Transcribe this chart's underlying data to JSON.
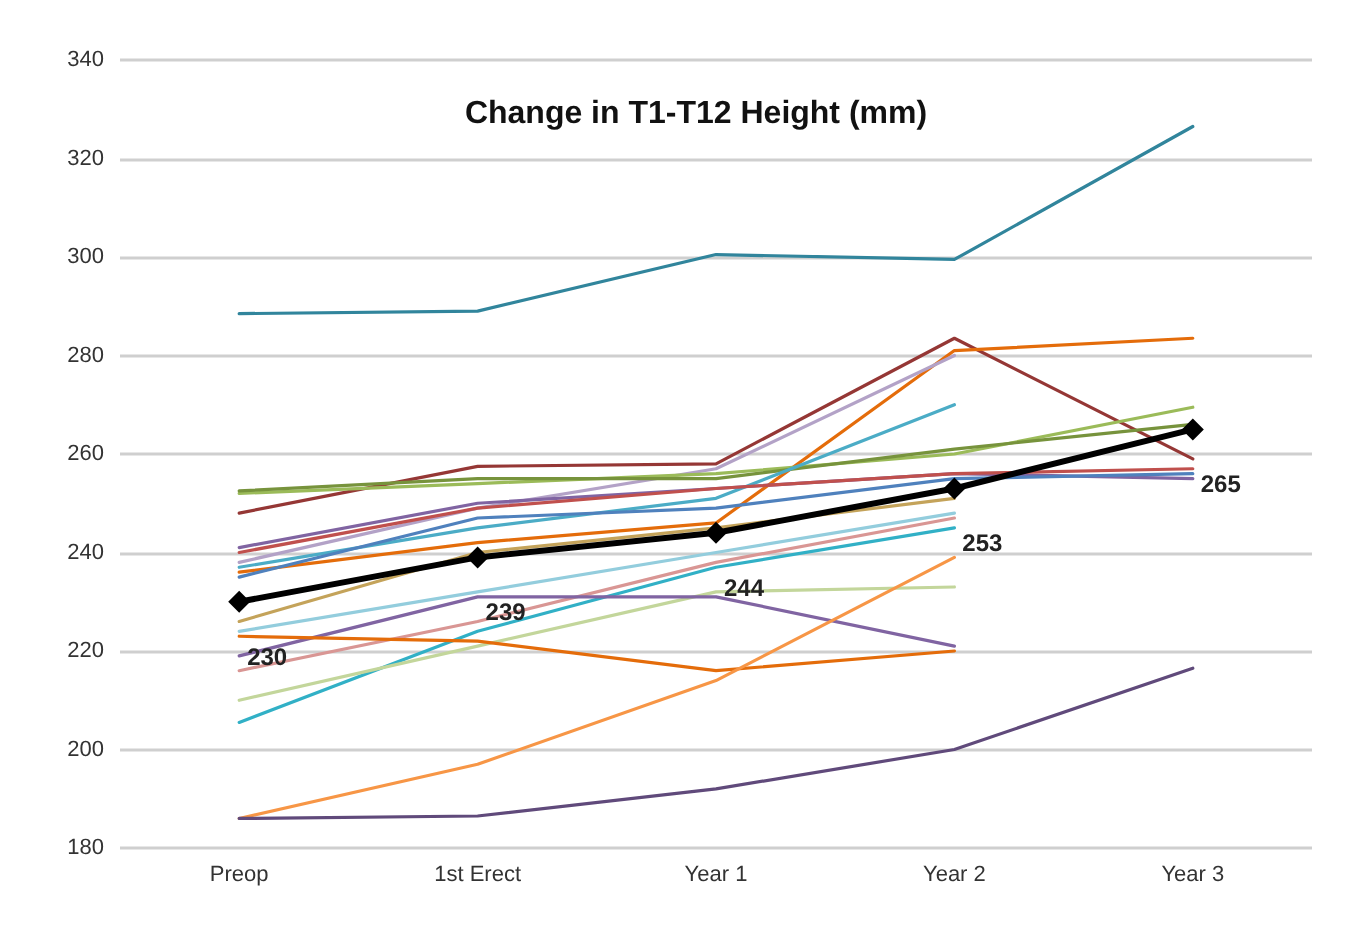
{
  "chart_data": {
    "type": "line",
    "title": "Change in T1-T12 Height (mm)",
    "categories": [
      "Preop",
      "1st Erect",
      "Year 1",
      "Year 2",
      "Year 3"
    ],
    "ylim": [
      180,
      340
    ],
    "yticks": [
      180,
      200,
      220,
      240,
      260,
      280,
      300,
      320,
      340
    ],
    "grid": "y",
    "marker": "none",
    "series": [
      {
        "color": "#31859c",
        "values": [
          288.5,
          289,
          300.5,
          299.5,
          326.5
        ]
      },
      {
        "color": "#953735",
        "values": [
          248,
          257.5,
          258,
          283.5,
          259
        ]
      },
      {
        "color": "#e46c0a",
        "values": [
          236,
          242,
          246,
          281,
          283.5
        ]
      },
      {
        "color": "#b3a2c7",
        "values": [
          238,
          249,
          257,
          280,
          null
        ]
      },
      {
        "color": "#9bbb59",
        "values": [
          252,
          254,
          256,
          260,
          269.5
        ]
      },
      {
        "color": "#77933c",
        "values": [
          252.5,
          255,
          255,
          261,
          266
        ]
      },
      {
        "color": "#4bacc6",
        "values": [
          237,
          245,
          251,
          270,
          null
        ]
      },
      {
        "color": "#8064a2",
        "values": [
          241,
          250,
          253,
          256,
          255
        ]
      },
      {
        "color": "#4f81bd",
        "values": [
          235,
          247,
          249,
          255,
          256
        ]
      },
      {
        "color": "#c0504d",
        "values": [
          240,
          249,
          253,
          256,
          257
        ]
      },
      {
        "color": "#c4a35a",
        "values": [
          226,
          240,
          245,
          251,
          null
        ]
      },
      {
        "color": "#93cddd",
        "values": [
          224,
          232,
          240,
          248,
          null
        ]
      },
      {
        "color": "#d99694",
        "values": [
          216,
          226,
          238,
          247,
          null
        ]
      },
      {
        "color": "#31b0c6",
        "values": [
          205.5,
          224,
          237,
          245,
          null
        ]
      },
      {
        "color": "#c3d69b",
        "values": [
          210,
          221,
          232,
          233,
          null
        ]
      },
      {
        "color": "#8064a2",
        "values": [
          219,
          231,
          231,
          221,
          null
        ]
      },
      {
        "color": "#e46c0a",
        "values": [
          223,
          222,
          216,
          220,
          null
        ]
      },
      {
        "color": "#f79646",
        "values": [
          186,
          197,
          214,
          239,
          null
        ]
      },
      {
        "color": "#604a7b",
        "values": [
          186,
          186.5,
          192,
          200,
          216.5
        ]
      },
      {
        "color": "#000000",
        "values": [
          230,
          239,
          244,
          253,
          265
        ],
        "marker": "diamond",
        "value_labels": [
          "230",
          "239",
          "244",
          "253",
          "265"
        ]
      }
    ]
  }
}
